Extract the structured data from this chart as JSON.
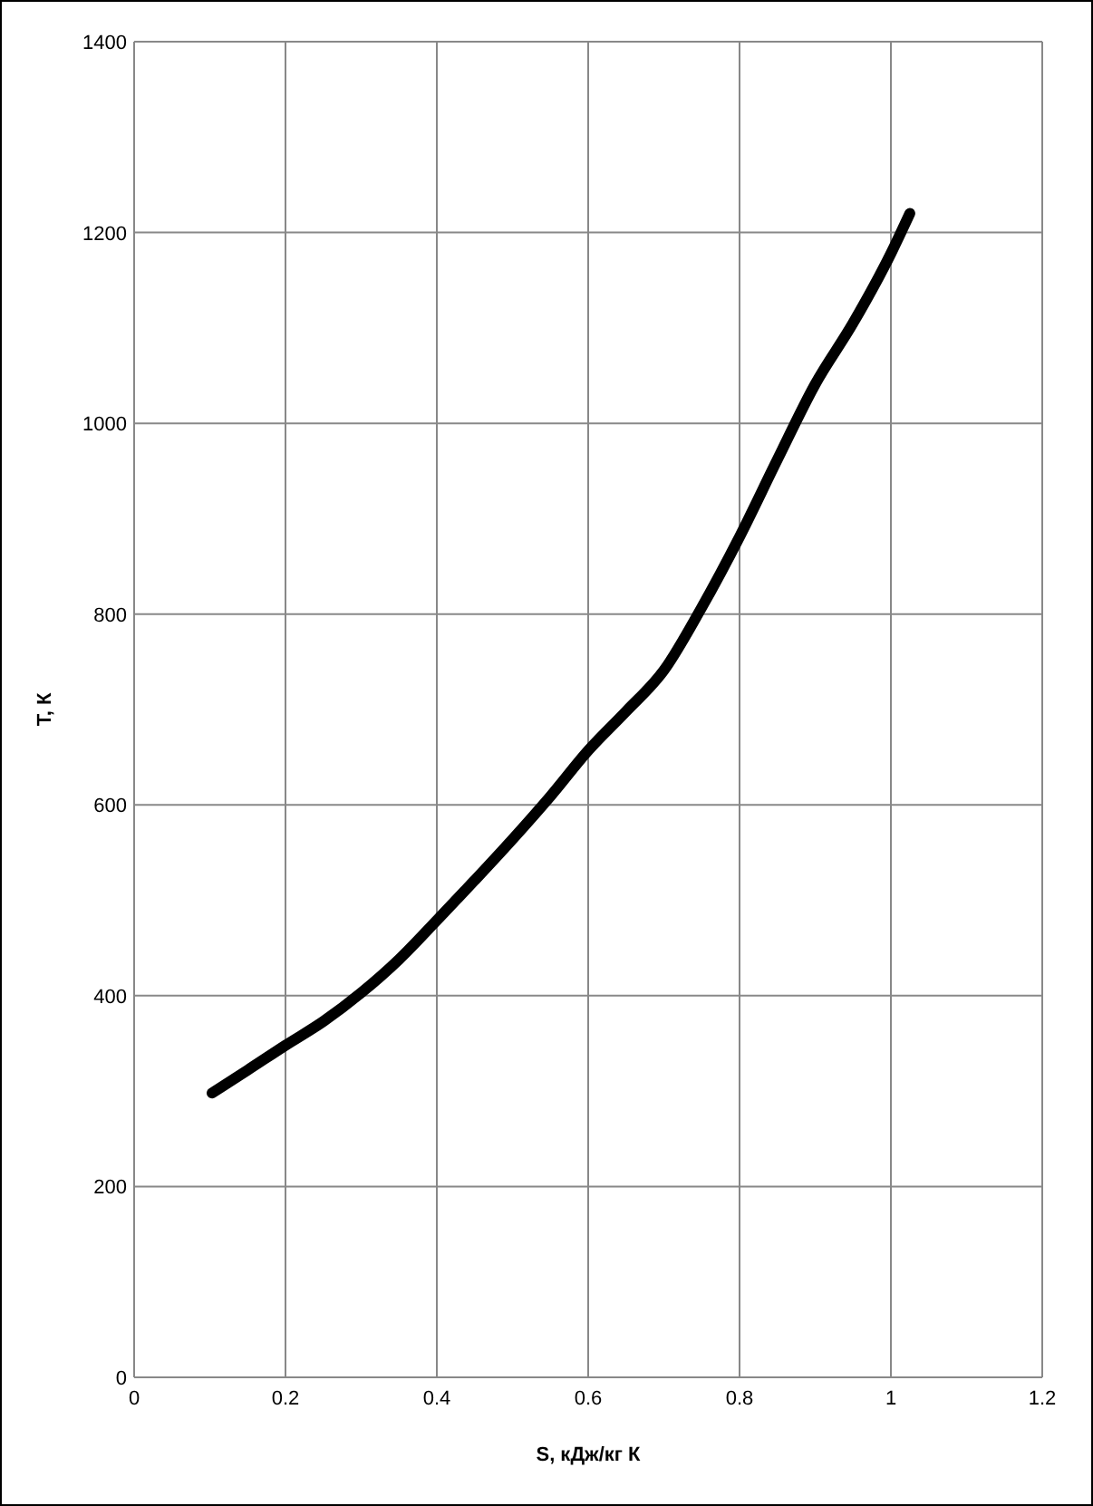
{
  "chart_data": {
    "type": "line",
    "xlabel": "S, кДж/кг К",
    "ylabel": "T, К",
    "x": [
      0.103,
      0.15,
      0.2,
      0.25,
      0.3,
      0.35,
      0.4,
      0.45,
      0.5,
      0.55,
      0.6,
      0.65,
      0.7,
      0.75,
      0.8,
      0.85,
      0.9,
      0.95,
      1.0,
      1.025
    ],
    "series": [
      {
        "color": "#000000",
        "values": [
          298,
          322,
          348,
          373,
          403,
          438,
          479,
          521,
          564,
          609,
          657,
          698,
          741,
          807,
          881,
          962,
          1041,
          1105,
          1178,
          1220
        ]
      }
    ],
    "xlim": [
      0,
      1.2
    ],
    "xticks": [
      0,
      0.2,
      0.4,
      0.6,
      0.8,
      1,
      1.2
    ],
    "ylim": [
      0,
      1400
    ],
    "yticks": [
      0,
      200,
      400,
      600,
      800,
      1000,
      1200,
      1400
    ],
    "grid": true,
    "line_style": "solid"
  }
}
